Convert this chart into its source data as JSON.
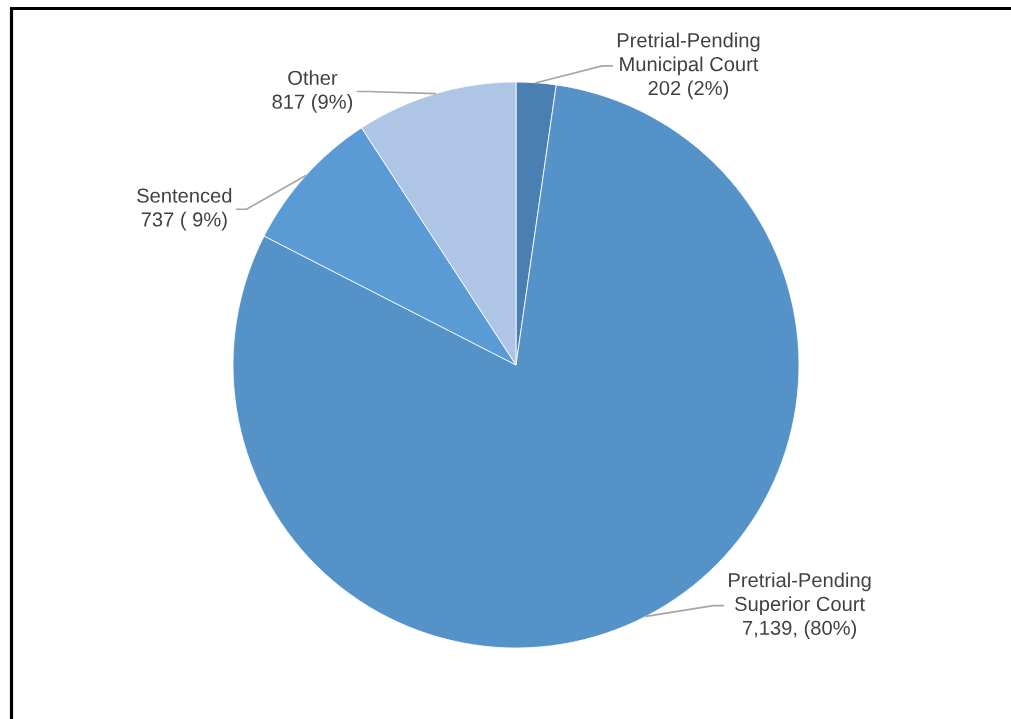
{
  "chart_data": {
    "type": "pie",
    "categories": [
      "Pretrial-Pending\nMunicipal Court",
      "Pretrial-Pending\nSuperior Court",
      "Sentenced",
      "Other"
    ],
    "values": [
      202,
      7139,
      737,
      817
    ],
    "colors": [
      "#4a7fb1",
      "#5592c8",
      "#5b9bd5",
      "#aec5e5"
    ],
    "value_labels": [
      "202 (2%)",
      "7,139, (80%)",
      "737 ( 9%)",
      "817 (9%)"
    ]
  }
}
